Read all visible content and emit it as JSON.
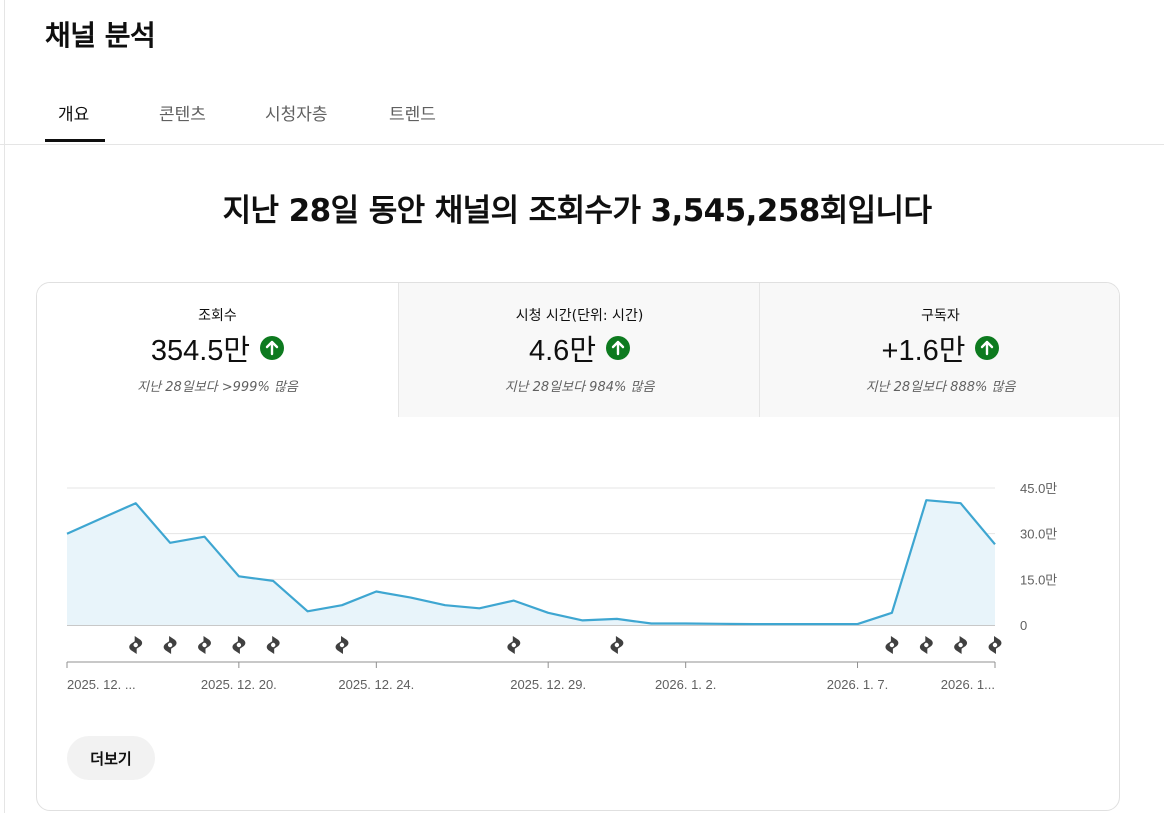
{
  "page": {
    "title": "채널 분석"
  },
  "tabs": [
    {
      "label": "개요",
      "active": true
    },
    {
      "label": "콘텐츠",
      "active": false
    },
    {
      "label": "시청자층",
      "active": false
    },
    {
      "label": "트렌드",
      "active": false
    }
  ],
  "headline": "지난 28일 동안 채널의 조회수가 3,545,258회입니다",
  "metrics": [
    {
      "label": "조회수",
      "value": "354.5만",
      "trend": "up",
      "comparison": "지난 28일보다 >999% 많음",
      "active": true
    },
    {
      "label": "시청 시간(단위: 시간)",
      "value": "4.6만",
      "trend": "up",
      "comparison": "지난 28일보다 984% 많음",
      "active": false
    },
    {
      "label": "구독자",
      "value": "+1.6만",
      "trend": "up",
      "comparison": "지난 28일보다 888% 많음",
      "active": false
    }
  ],
  "colors": {
    "line": "#3ea6d1",
    "area": "#e8f4fa",
    "up": "#0d7a1f",
    "short_marker": "#404040"
  },
  "chart_data": {
    "type": "area",
    "series": [
      {
        "values": [
          30,
          35,
          40,
          27,
          29,
          16,
          14.5,
          4.5,
          6.5,
          11,
          9,
          6.5,
          5.5,
          8,
          4,
          1.5,
          2,
          0.5,
          0.5,
          0.4,
          0.3,
          0.3,
          0.3,
          0.3,
          4,
          41,
          40,
          26.5
        ]
      }
    ],
    "y_ticks": [
      "45.0만",
      "30.0만",
      "15.0만",
      "0"
    ],
    "ylim": [
      0,
      45
    ],
    "x_tick_labels": [
      {
        "index": 0,
        "label": "2025. 12. ..."
      },
      {
        "index": 5,
        "label": "2025. 12. 20."
      },
      {
        "index": 9,
        "label": "2025. 12. 24."
      },
      {
        "index": 14,
        "label": "2025. 12. 29."
      },
      {
        "index": 18,
        "label": "2026. 1. 2."
      },
      {
        "index": 23,
        "label": "2026. 1. 7."
      },
      {
        "index": 27,
        "label": "2026. 1..."
      }
    ],
    "short_markers": [
      2,
      3,
      4,
      5,
      6,
      8,
      13,
      16,
      24,
      25,
      26,
      27
    ],
    "grid": true
  },
  "more_button": "더보기"
}
